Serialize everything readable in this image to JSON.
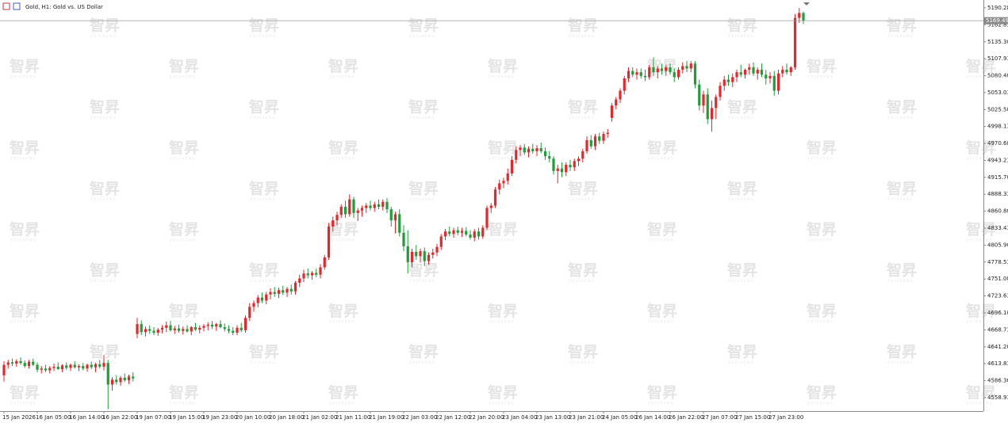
{
  "chart_data": {
    "type": "candlestick",
    "title": "Gold, H1: Gold vs. US Dollar",
    "watermark": {
      "logo": "智昇",
      "caption": "ZHISHENG"
    },
    "up_color": "#e8252a",
    "down_color": "#1f9d3a",
    "grid": false,
    "current_price": 5169.49,
    "ylim": [
      4537,
      5203
    ],
    "yticks": [
      5190.28,
      5162.83,
      {
        "value": 5135.3,
        "label": "5135.30"
      },
      5107.93,
      {
        "value": 5080.4,
        "label": "5080.40"
      },
      5053.03,
      {
        "value": 5025.5,
        "label": "5025.50"
      },
      4998.13,
      {
        "value": 4970.6,
        "label": "4970.60"
      },
      4943.23,
      {
        "value": 4915.7,
        "label": "4915.70"
      },
      4888.33,
      {
        "value": 4860.8,
        "label": "4860.80"
      },
      4833.43,
      {
        "value": 4805.9,
        "label": "4805.90"
      },
      4778.53,
      {
        "value": 4751,
        "label": "4751.00"
      },
      4723.63,
      {
        "value": 4696.1,
        "label": "4696.10"
      },
      4668.73,
      {
        "value": 4641.2,
        "label": "4641.20"
      },
      4613.83,
      {
        "value": 4586.3,
        "label": "4586.30"
      },
      4558.93
    ],
    "xlim": [
      0,
      236
    ],
    "xticks": [
      {
        "value": 0,
        "label": "15 Jan 2026"
      },
      {
        "value": 8,
        "label": "16 Jan 05:00"
      },
      {
        "value": 16,
        "label": "16 Jan 14:00"
      },
      {
        "value": 24,
        "label": "16 Jan 22:00"
      },
      {
        "value": 32,
        "label": "19 Jan 07:00"
      },
      {
        "value": 40,
        "label": "19 Jan 15:00"
      },
      {
        "value": 48,
        "label": "19 Jan 23:00"
      },
      {
        "value": 56,
        "label": "20 Jan 10:00"
      },
      {
        "value": 64,
        "label": "20 Jan 18:00"
      },
      {
        "value": 72,
        "label": "21 Jan 02:00"
      },
      {
        "value": 80,
        "label": "21 Jan 11:00"
      },
      {
        "value": 88,
        "label": "21 Jan 19:00"
      },
      {
        "value": 96,
        "label": "22 Jan 03:00"
      },
      {
        "value": 104,
        "label": "22 Jan 12:00"
      },
      {
        "value": 112,
        "label": "22 Jan 20:00"
      },
      {
        "value": 120,
        "label": "23 Jan 04:00"
      },
      {
        "value": 128,
        "label": "23 Jan 13:00"
      },
      {
        "value": 136,
        "label": "23 Jan 21:00"
      },
      {
        "value": 144,
        "label": "24 Jan 05:00"
      },
      {
        "value": 152,
        "label": "26 Jan 14:00"
      },
      {
        "value": 160,
        "label": "26 Jan 22:00"
      },
      {
        "value": 168,
        "label": "27 Jan 07:00"
      },
      {
        "value": 176,
        "label": "27 Jan 15:00"
      },
      {
        "value": 184,
        "label": "27 Jan 23:00"
      }
    ],
    "ohlc": [
      [
        4595,
        4618,
        4585,
        4612
      ],
      [
        4612,
        4620,
        4606,
        4616
      ],
      [
        4616,
        4622,
        4610,
        4614
      ],
      [
        4614,
        4621,
        4609,
        4618
      ],
      [
        4618,
        4624,
        4612,
        4615
      ],
      [
        4615,
        4619,
        4607,
        4610
      ],
      [
        4610,
        4620,
        4606,
        4617
      ],
      [
        4617,
        4622,
        4610,
        4612
      ],
      [
        4612,
        4616,
        4600,
        4604
      ],
      [
        4604,
        4610,
        4598,
        4606
      ],
      [
        4606,
        4612,
        4600,
        4603
      ],
      [
        4603,
        4610,
        4598,
        4607
      ],
      [
        4607,
        4614,
        4602,
        4609
      ],
      [
        4609,
        4616,
        4604,
        4605
      ],
      [
        4605,
        4613,
        4600,
        4611
      ],
      [
        4611,
        4616,
        4604,
        4607
      ],
      [
        4607,
        4614,
        4602,
        4612
      ],
      [
        4612,
        4618,
        4606,
        4608
      ],
      [
        4608,
        4613,
        4602,
        4610
      ],
      [
        4610,
        4615,
        4603,
        4606
      ],
      [
        4606,
        4614,
        4601,
        4612
      ],
      [
        4612,
        4617,
        4605,
        4608
      ],
      [
        4608,
        4615,
        4600,
        4613
      ],
      [
        4613,
        4620,
        4606,
        4609
      ],
      [
        4609,
        4628,
        4603,
        4615
      ],
      [
        4615,
        4620,
        4540,
        4580
      ],
      [
        4580,
        4592,
        4570,
        4588
      ],
      [
        4588,
        4595,
        4580,
        4584
      ],
      [
        4584,
        4594,
        4578,
        4591
      ],
      [
        4591,
        4598,
        4584,
        4587
      ],
      [
        4587,
        4596,
        4581,
        4593
      ],
      [
        4593,
        4600,
        4585,
        4590
      ],
      [
        4662,
        4688,
        4655,
        4678
      ],
      [
        4678,
        4684,
        4660,
        4665
      ],
      [
        4665,
        4674,
        4658,
        4670
      ],
      [
        4670,
        4676,
        4662,
        4667
      ],
      [
        4667,
        4673,
        4660,
        4664
      ],
      [
        4664,
        4672,
        4659,
        4669
      ],
      [
        4669,
        4676,
        4663,
        4672
      ],
      [
        4672,
        4682,
        4665,
        4676
      ],
      [
        4676,
        4683,
        4666,
        4668
      ],
      [
        4668,
        4675,
        4662,
        4671
      ],
      [
        4671,
        4677,
        4664,
        4667
      ],
      [
        4667,
        4674,
        4661,
        4670
      ],
      [
        4670,
        4676,
        4664,
        4666
      ],
      [
        4666,
        4675,
        4660,
        4673
      ],
      [
        4673,
        4680,
        4667,
        4669
      ],
      [
        4669,
        4676,
        4663,
        4672
      ],
      [
        4672,
        4678,
        4666,
        4675
      ],
      [
        4675,
        4681,
        4668,
        4677
      ],
      [
        4677,
        4683,
        4670,
        4674
      ],
      [
        4674,
        4680,
        4667,
        4678
      ],
      [
        4678,
        4684,
        4671,
        4673
      ],
      [
        4673,
        4679,
        4666,
        4670
      ],
      [
        4670,
        4676,
        4663,
        4667
      ],
      [
        4667,
        4673,
        4660,
        4664
      ],
      [
        4664,
        4676,
        4660,
        4672
      ],
      [
        4672,
        4680,
        4665,
        4668
      ],
      [
        4668,
        4692,
        4664,
        4688
      ],
      [
        4688,
        4712,
        4683,
        4706
      ],
      [
        4706,
        4716,
        4698,
        4712
      ],
      [
        4712,
        4725,
        4705,
        4721
      ],
      [
        4721,
        4729,
        4712,
        4716
      ],
      [
        4716,
        4730,
        4710,
        4726
      ],
      [
        4726,
        4736,
        4718,
        4730
      ],
      [
        4730,
        4738,
        4722,
        4727
      ],
      [
        4727,
        4737,
        4720,
        4733
      ],
      [
        4733,
        4740,
        4725,
        4729
      ],
      [
        4729,
        4738,
        4722,
        4735
      ],
      [
        4735,
        4742,
        4726,
        4731
      ],
      [
        4731,
        4748,
        4726,
        4745
      ],
      [
        4745,
        4758,
        4738,
        4752
      ],
      [
        4752,
        4766,
        4746,
        4760
      ],
      [
        4760,
        4768,
        4752,
        4757
      ],
      [
        4757,
        4764,
        4750,
        4761
      ],
      [
        4761,
        4768,
        4754,
        4758
      ],
      [
        4758,
        4775,
        4752,
        4770
      ],
      [
        4770,
        4790,
        4766,
        4786
      ],
      [
        4786,
        4842,
        4782,
        4836
      ],
      [
        4836,
        4852,
        4828,
        4846
      ],
      [
        4846,
        4860,
        4838,
        4855
      ],
      [
        4855,
        4872,
        4850,
        4868
      ],
      [
        4868,
        4878,
        4850,
        4856
      ],
      [
        4856,
        4888,
        4852,
        4880
      ],
      [
        4880,
        4884,
        4850,
        4858
      ],
      [
        4858,
        4866,
        4845,
        4862
      ],
      [
        4862,
        4870,
        4852,
        4866
      ],
      [
        4866,
        4874,
        4858,
        4870
      ],
      [
        4870,
        4878,
        4862,
        4866
      ],
      [
        4866,
        4876,
        4860,
        4872
      ],
      [
        4872,
        4880,
        4864,
        4868
      ],
      [
        4868,
        4880,
        4862,
        4876
      ],
      [
        4876,
        4882,
        4858,
        4864
      ],
      [
        4864,
        4868,
        4836,
        4846
      ],
      [
        4846,
        4860,
        4825,
        4856
      ],
      [
        4856,
        4864,
        4820,
        4826
      ],
      [
        4826,
        4838,
        4796,
        4804
      ],
      [
        4804,
        4830,
        4760,
        4778
      ],
      [
        4778,
        4800,
        4770,
        4795
      ],
      [
        4795,
        4806,
        4782,
        4788
      ],
      [
        4788,
        4800,
        4778,
        4796
      ],
      [
        4796,
        4802,
        4772,
        4780
      ],
      [
        4780,
        4794,
        4774,
        4790
      ],
      [
        4790,
        4800,
        4784,
        4794
      ],
      [
        4794,
        4808,
        4788,
        4803
      ],
      [
        4803,
        4824,
        4798,
        4820
      ],
      [
        4820,
        4832,
        4814,
        4828
      ],
      [
        4828,
        4836,
        4820,
        4824
      ],
      [
        4824,
        4834,
        4818,
        4830
      ],
      [
        4830,
        4836,
        4822,
        4826
      ],
      [
        4826,
        4834,
        4819,
        4829
      ],
      [
        4829,
        4835,
        4820,
        4823
      ],
      [
        4823,
        4830,
        4815,
        4818
      ],
      [
        4818,
        4832,
        4812,
        4828
      ],
      [
        4828,
        4834,
        4815,
        4820
      ],
      [
        4820,
        4838,
        4816,
        4834
      ],
      [
        4834,
        4870,
        4830,
        4866
      ],
      [
        4866,
        4874,
        4858,
        4870
      ],
      [
        4870,
        4900,
        4866,
        4896
      ],
      [
        4896,
        4912,
        4888,
        4906
      ],
      [
        4906,
        4915,
        4898,
        4910
      ],
      [
        4910,
        4930,
        4904,
        4922
      ],
      [
        4922,
        4950,
        4918,
        4944
      ],
      [
        4944,
        4966,
        4938,
        4960
      ],
      [
        4960,
        4968,
        4950,
        4964
      ],
      [
        4964,
        4970,
        4952,
        4956
      ],
      [
        4956,
        4966,
        4948,
        4962
      ],
      [
        4962,
        4970,
        4954,
        4958
      ],
      [
        4958,
        4968,
        4950,
        4963
      ],
      [
        4963,
        4972,
        4955,
        4958
      ],
      [
        4958,
        4964,
        4944,
        4950
      ],
      [
        4950,
        4958,
        4940,
        4946
      ],
      [
        4946,
        4950,
        4920,
        4926
      ],
      [
        4926,
        4936,
        4906,
        4930
      ],
      [
        4930,
        4940,
        4916,
        4924
      ],
      [
        4924,
        4940,
        4918,
        4936
      ],
      [
        4936,
        4944,
        4926,
        4932
      ],
      [
        4932,
        4946,
        4926,
        4942
      ],
      [
        4942,
        4950,
        4934,
        4946
      ],
      [
        4946,
        4962,
        4940,
        4958
      ],
      [
        4958,
        4982,
        4954,
        4976
      ],
      [
        4976,
        4984,
        4962,
        4966
      ],
      [
        4966,
        4986,
        4960,
        4982
      ],
      [
        4982,
        4988,
        4970,
        4975
      ],
      [
        4975,
        4990,
        4970,
        4986
      ],
      [
        4986,
        4994,
        4980,
        4988
      ],
      [
        5012,
        5036,
        5006,
        5032
      ],
      [
        5032,
        5046,
        5026,
        5042
      ],
      [
        5042,
        5060,
        5036,
        5056
      ],
      [
        5056,
        5080,
        5050,
        5076
      ],
      [
        5076,
        5094,
        5070,
        5088
      ],
      [
        5088,
        5094,
        5078,
        5082
      ],
      [
        5082,
        5092,
        5074,
        5086
      ],
      [
        5086,
        5092,
        5076,
        5080
      ],
      [
        5080,
        5090,
        5072,
        5078
      ],
      [
        5078,
        5098,
        5074,
        5094
      ],
      [
        5094,
        5110,
        5080,
        5086
      ],
      [
        5086,
        5096,
        5076,
        5092
      ],
      [
        5092,
        5100,
        5082,
        5088
      ],
      [
        5088,
        5098,
        5080,
        5094
      ],
      [
        5094,
        5100,
        5082,
        5086
      ],
      [
        5086,
        5092,
        5070,
        5078
      ],
      [
        5078,
        5094,
        5074,
        5090
      ],
      [
        5090,
        5102,
        5084,
        5096
      ],
      [
        5096,
        5104,
        5086,
        5092
      ],
      [
        5092,
        5104,
        5086,
        5100
      ],
      [
        5100,
        5104,
        5060,
        5066
      ],
      [
        5066,
        5074,
        5024,
        5032
      ],
      [
        5032,
        5056,
        5020,
        5050
      ],
      [
        5050,
        5060,
        5002,
        5010
      ],
      [
        5010,
        5040,
        4990,
        5028
      ],
      [
        5028,
        5050,
        5010,
        5046
      ],
      [
        5046,
        5070,
        5040,
        5064
      ],
      [
        5064,
        5080,
        5056,
        5074
      ],
      [
        5074,
        5082,
        5064,
        5070
      ],
      [
        5070,
        5084,
        5062,
        5078
      ],
      [
        5078,
        5090,
        5070,
        5086
      ],
      [
        5086,
        5098,
        5078,
        5082
      ],
      [
        5082,
        5092,
        5076,
        5090
      ],
      [
        5090,
        5100,
        5082,
        5094
      ],
      [
        5094,
        5102,
        5080,
        5084
      ],
      [
        5084,
        5094,
        5074,
        5090
      ],
      [
        5090,
        5100,
        5078,
        5082
      ],
      [
        5082,
        5090,
        5066,
        5076
      ],
      [
        5076,
        5086,
        5068,
        5080
      ],
      [
        5080,
        5088,
        5048,
        5056
      ],
      [
        5056,
        5090,
        5050,
        5084
      ],
      [
        5084,
        5096,
        5078,
        5090
      ],
      [
        5090,
        5100,
        5082,
        5086
      ],
      [
        5086,
        5096,
        5080,
        5094
      ],
      [
        5094,
        5180,
        5090,
        5174
      ],
      [
        5174,
        5190,
        5166,
        5182
      ],
      [
        5182,
        5184,
        5164,
        5169.49
      ]
    ]
  }
}
